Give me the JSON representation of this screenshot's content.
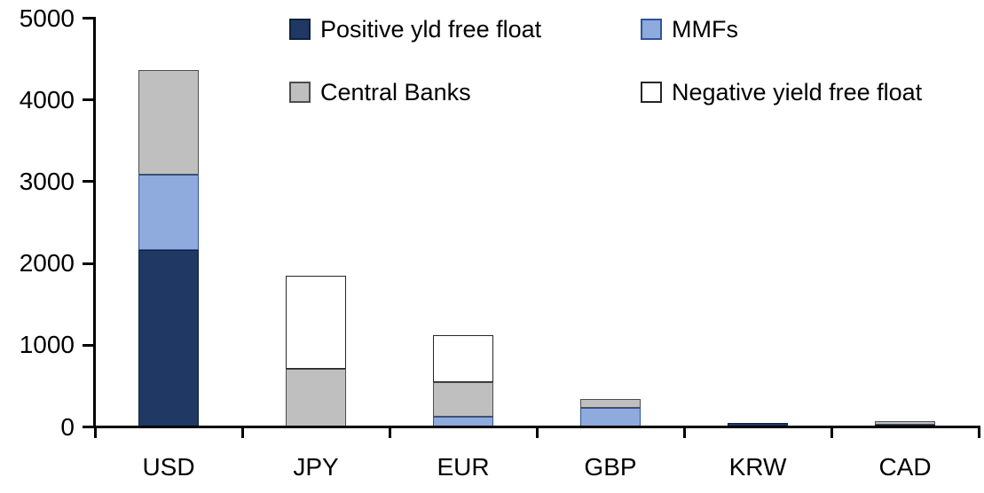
{
  "chart_data": {
    "type": "bar",
    "stacked": true,
    "title": "",
    "xlabel": "",
    "ylabel": "",
    "grid": false,
    "legend_position": "top",
    "background_color": "#ffffff",
    "axis_color": "#000000",
    "ylim": [
      0,
      5000
    ],
    "yticks": [
      0,
      1000,
      2000,
      3000,
      4000,
      5000
    ],
    "categories": [
      "USD",
      "JPY",
      "EUR",
      "GBP",
      "KRW",
      "CAD"
    ],
    "series": [
      {
        "key": "positive-yld-free-float",
        "name": "Positive yld free float",
        "color": "#1F3864",
        "border_color": "#10213f",
        "values": [
          2160,
          0,
          0,
          0,
          50,
          30
        ]
      },
      {
        "key": "mmfs",
        "name": "MMFs",
        "color": "#8FAADC",
        "border_color": "#2F5597",
        "values": [
          930,
          0,
          120,
          230,
          0,
          0
        ]
      },
      {
        "key": "central-banks",
        "name": "Central Banks",
        "color": "#BFBFBF",
        "border_color": "#4d4d4d",
        "values": [
          1280,
          710,
          430,
          110,
          0,
          45
        ]
      },
      {
        "key": "negative-yield-free-float",
        "name": "Negative yield free float",
        "color": "#FFFFFF",
        "border_color": "#262626",
        "values": [
          0,
          1140,
          570,
          0,
          0,
          0
        ]
      }
    ],
    "totals": {
      "USD": 4370,
      "JPY": 1850,
      "EUR": 1120,
      "GBP": 340,
      "KRW": 50,
      "CAD": 75
    }
  }
}
